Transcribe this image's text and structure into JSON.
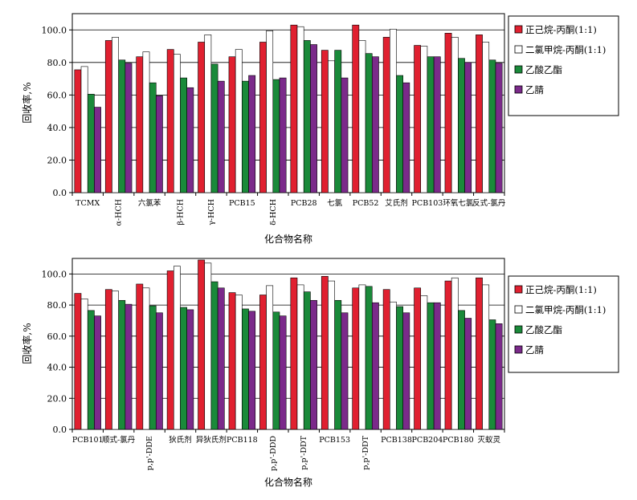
{
  "colors": {
    "background": "#ffffff",
    "gridline": "#000000",
    "axis": "#000000",
    "series": [
      "#e02030",
      "#ffffff",
      "#1a8a3a",
      "#7b2a8a"
    ],
    "bar_stroke": "#000000"
  },
  "chart_data": [
    {
      "type": "bar",
      "title": "",
      "xlabel": "化合物名称",
      "ylabel": "回收率,%",
      "ylim": [
        0,
        110
      ],
      "yticks": [
        "0.0",
        "20.0",
        "40.0",
        "60.0",
        "80.0",
        "100.0"
      ],
      "ytick_values": [
        0,
        20,
        40,
        60,
        80,
        100
      ],
      "grid": "horizontal",
      "legend_position": "right",
      "categories": [
        "TCMX",
        "α-HCH",
        "六氯苯",
        "β-HCH",
        "γ-HCH",
        "PCB15",
        "δ-HCH",
        "PCB28",
        "七氯",
        "PCB52",
        "艾氏剂",
        "PCB103",
        "环氧七氯",
        "反式-氯丹"
      ],
      "category_rotated": [
        false,
        true,
        false,
        true,
        true,
        false,
        true,
        false,
        false,
        false,
        false,
        false,
        false,
        false
      ],
      "series": [
        {
          "name": "正己烷-丙酮(1:1)",
          "values": [
            75.5,
            93.5,
            83.5,
            88,
            92.5,
            83.5,
            92.5,
            103,
            87.5,
            103,
            95.5,
            90.5,
            98,
            97
          ]
        },
        {
          "name": "二氯甲烷-丙酮(1:1)",
          "values": [
            77.5,
            95.5,
            86.5,
            85,
            97,
            88,
            99.5,
            102,
            81,
            93.5,
            100.5,
            90,
            95.5,
            92.5
          ]
        },
        {
          "name": "乙酸乙酯",
          "values": [
            60.5,
            81.5,
            67.5,
            70.5,
            79,
            68.5,
            69.5,
            93.5,
            87.5,
            85.5,
            72,
            83.5,
            82.5,
            81.5
          ]
        },
        {
          "name": "乙腈",
          "values": [
            52.5,
            79.5,
            59.5,
            64.5,
            68.5,
            72,
            70.5,
            91,
            70.5,
            83.5,
            67.5,
            83.5,
            80,
            79.5
          ]
        }
      ]
    },
    {
      "type": "bar",
      "title": "",
      "xlabel": "化合物名称",
      "ylabel": "回收率,%",
      "ylim": [
        0,
        110
      ],
      "yticks": [
        "0.0",
        "20.0",
        "40.0",
        "60.0",
        "80.0",
        "100.0"
      ],
      "ytick_values": [
        0,
        20,
        40,
        60,
        80,
        100
      ],
      "grid": "horizontal",
      "legend_position": "right",
      "categories": [
        "PCB101",
        "顺式-氯丹",
        "p,p'-DDE",
        "狄氏剂",
        "异狄氏剂",
        "PCB118",
        "p,p'-DDD",
        "p,p'-DDT",
        "PCB153",
        "p,p'-DDT",
        "PCB138",
        "PCB204",
        "PCB180",
        "灭蚁灵"
      ],
      "category_rotated": [
        false,
        false,
        true,
        false,
        false,
        false,
        true,
        true,
        false,
        true,
        false,
        false,
        false,
        false
      ],
      "series": [
        {
          "name": "正己烷-丙酮(1:1)",
          "values": [
            87.5,
            90,
            93.5,
            102,
            109,
            88,
            86.5,
            97.5,
            98.5,
            91,
            90,
            91,
            95.5,
            97.5
          ]
        },
        {
          "name": "二氯甲烷-丙酮(1:1)",
          "values": [
            84,
            89,
            91,
            105,
            107,
            86.5,
            92.5,
            93,
            95.5,
            93,
            82,
            86,
            97.5,
            93
          ]
        },
        {
          "name": "乙酸乙酯",
          "values": [
            76.5,
            83,
            79.5,
            78.5,
            95,
            77.5,
            75.5,
            88.5,
            83,
            92,
            79,
            81.5,
            76.5,
            70.5
          ]
        },
        {
          "name": "乙腈",
          "values": [
            73,
            80.5,
            75,
            77,
            91,
            76,
            73,
            83,
            75,
            81.5,
            75,
            81.5,
            71.5,
            68
          ]
        }
      ]
    }
  ]
}
